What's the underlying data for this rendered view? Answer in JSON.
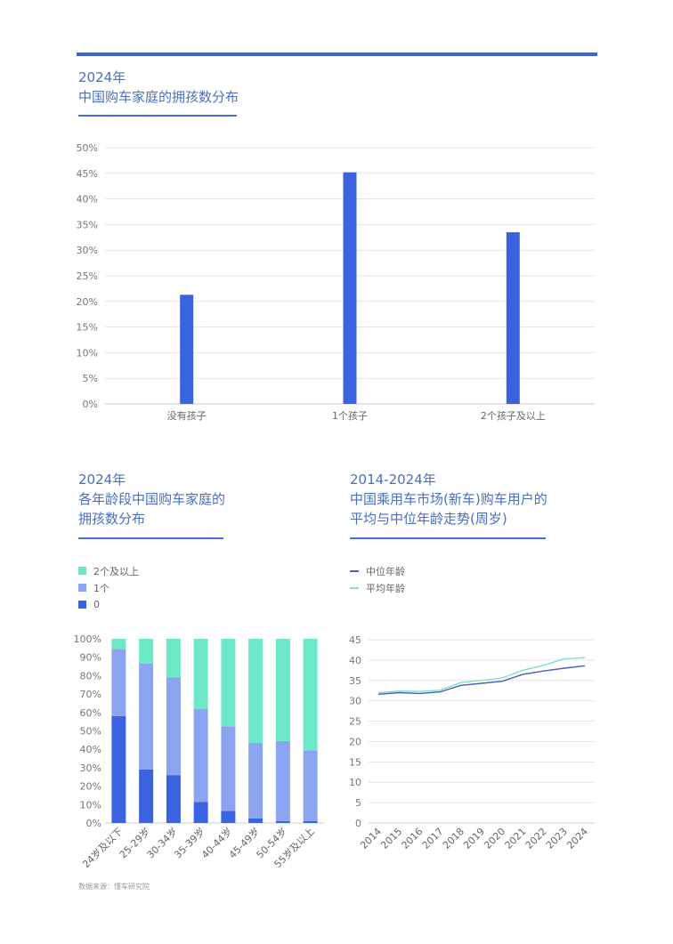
{
  "chart1": {
    "title_year": "2024年",
    "title": "中国购车家庭的拥孩数分布",
    "chart_data": {
      "type": "bar",
      "categories": [
        "没有孩子",
        "1个孩子",
        "2个孩子及以上"
      ],
      "values": [
        21.3,
        45.2,
        33.5
      ],
      "ylim": [
        0,
        50
      ],
      "yticks": [
        "0%",
        "5%",
        "10%",
        "15%",
        "20%",
        "25%",
        "30%",
        "35%",
        "40%",
        "45%",
        "50%"
      ],
      "grid": true,
      "color": "#3b63e0"
    }
  },
  "chart2": {
    "title_year": "2024年",
    "title_line1": "各年龄段中国购车家庭的",
    "title_line2": "拥孩数分布",
    "chart_data": {
      "type": "bar",
      "stacked": true,
      "categories": [
        "24岁及以下",
        "25-29岁",
        "30-34岁",
        "35-39岁",
        "40-44岁",
        "45-49岁",
        "50-54岁",
        "55岁及以上"
      ],
      "series": [
        {
          "name": "0",
          "values": [
            58,
            29,
            26,
            11.5,
            6.5,
            2.5,
            1,
            1
          ],
          "color": "#3b63e0"
        },
        {
          "name": "1个",
          "values": [
            36.5,
            57.5,
            53,
            50.5,
            46,
            41,
            43.5,
            38.5
          ],
          "color": "#8aa4ef"
        },
        {
          "name": "2个及以上",
          "values": [
            5.5,
            13.5,
            21,
            38,
            47.5,
            56.5,
            55.5,
            60.5
          ],
          "color": "#6de8c7"
        }
      ],
      "ylim": [
        0,
        100
      ],
      "yticks": [
        "0%",
        "10%",
        "20%",
        "30%",
        "40%",
        "50%",
        "60%",
        "70%",
        "80%",
        "90%",
        "100%"
      ],
      "legend_position": "top-left"
    }
  },
  "chart3": {
    "title_year": "2014-2024年",
    "title_line1": "中国乘用车市场(新车)购车用户的",
    "title_line2": "平均与中位年龄走势(周岁)",
    "chart_data": {
      "type": "line",
      "x": [
        "2014",
        "2015",
        "2016",
        "2017",
        "2018",
        "2019",
        "2020",
        "2021",
        "2022",
        "2023",
        "2024"
      ],
      "series": [
        {
          "name": "中位年龄",
          "values": [
            31.6,
            32.0,
            31.8,
            32.2,
            33.8,
            34.3,
            34.8,
            36.5,
            37.3,
            38.0,
            38.6
          ],
          "color": "#4a5fb0"
        },
        {
          "name": "平均年龄",
          "values": [
            32.0,
            32.4,
            32.3,
            32.6,
            34.5,
            35.0,
            35.6,
            37.5,
            38.7,
            40.3,
            40.6
          ],
          "color": "#7de0cc"
        }
      ],
      "ylim": [
        0,
        45
      ],
      "yticks": [
        "0",
        "5",
        "10",
        "15",
        "20",
        "25",
        "30",
        "35",
        "40",
        "45"
      ],
      "grid": true,
      "legend_position": "top-left"
    }
  },
  "source": "数据来源：懂车研究院"
}
